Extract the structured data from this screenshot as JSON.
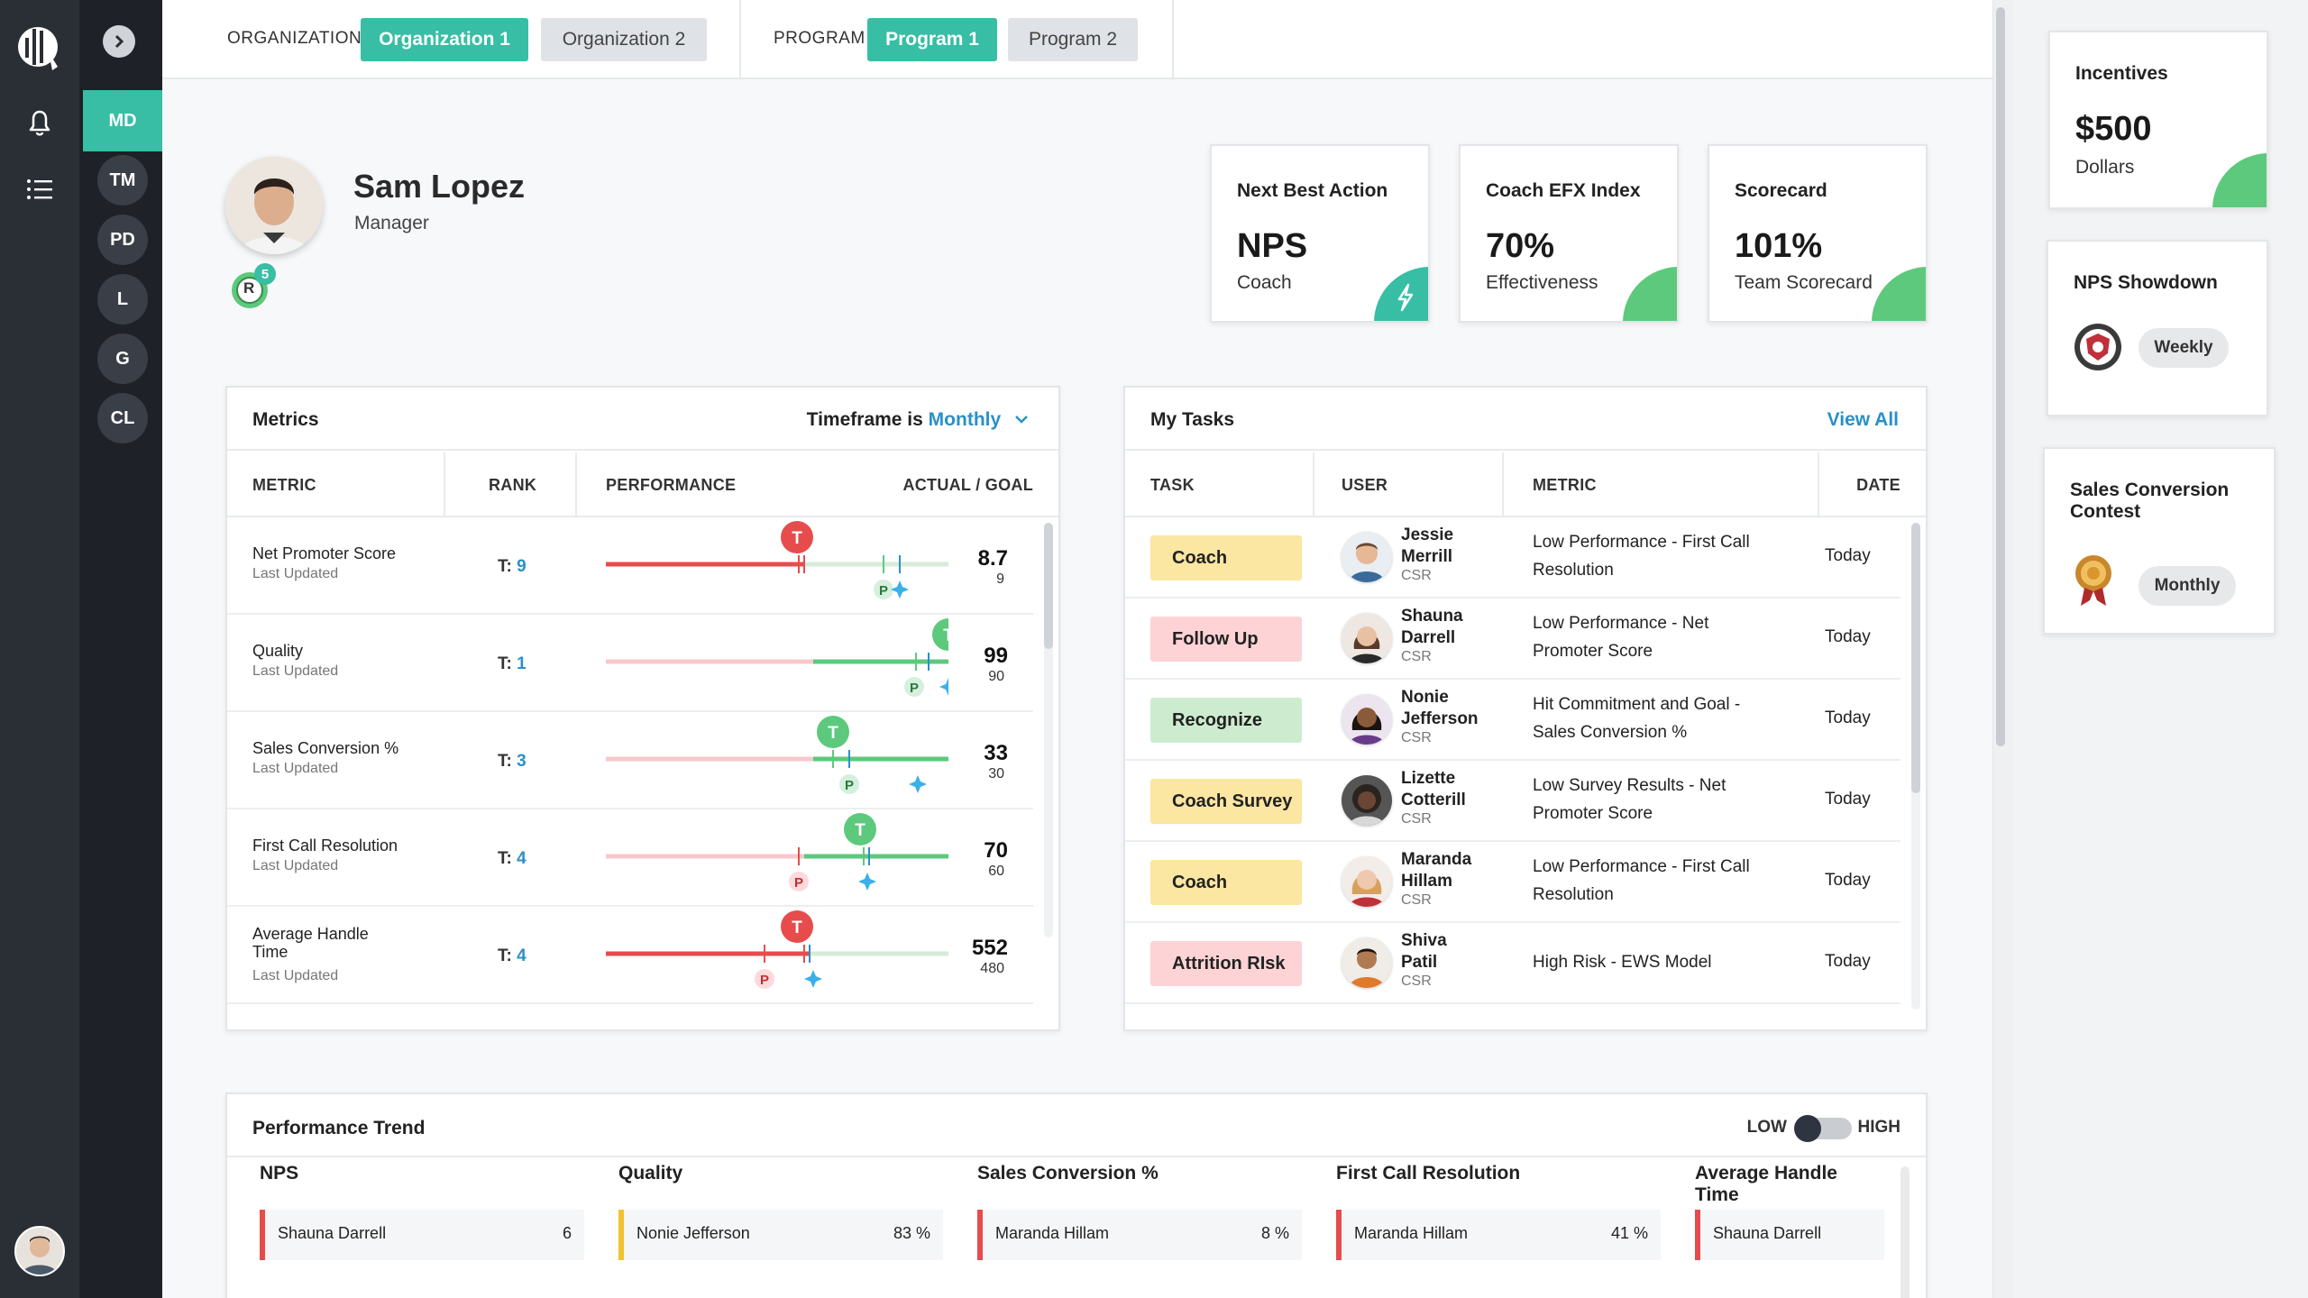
{
  "nav": {
    "teams": [
      "MD",
      "TM",
      "PD",
      "L",
      "G",
      "CL"
    ],
    "active_team": "MD"
  },
  "topbar": {
    "org_label": "ORGANIZATION",
    "orgs": [
      "Organization 1",
      "Organization 2"
    ],
    "program_label": "PROGRAM",
    "programs": [
      "Program 1",
      "Program 2"
    ]
  },
  "profile": {
    "name": "Sam Lopez",
    "role": "Manager",
    "badge_letter": "R",
    "badge_count": "5"
  },
  "summary_cards": [
    {
      "title": "Next Best Action",
      "value": "NPS",
      "sub": "Coach"
    },
    {
      "title": "Coach EFX Index",
      "value": "70%",
      "sub": "Effectiveness"
    },
    {
      "title": "Scorecard",
      "value": "101%",
      "sub": "Team Scorecard"
    }
  ],
  "metrics": {
    "title": "Metrics",
    "timeframe_prefix": "Timeframe is",
    "timeframe": "Monthly",
    "columns": {
      "metric": "METRIC",
      "rank": "RANK",
      "performance": "PERFORMANCE",
      "actual_goal": "ACTUAL / GOAL"
    },
    "rows": [
      {
        "name": "Net Promoter Score",
        "updated": "Last Updated",
        "rank_prefix": "T:",
        "rank": "9",
        "actual": "8.7",
        "goal": "9"
      },
      {
        "name": "Quality",
        "updated": "Last Updated",
        "rank_prefix": "T:",
        "rank": "1",
        "actual": "99",
        "goal": "90"
      },
      {
        "name": "Sales Conversion %",
        "updated": "Last Updated",
        "rank_prefix": "T:",
        "rank": "3",
        "actual": "33",
        "goal": "30"
      },
      {
        "name": "First Call Resolution",
        "updated": "Last Updated",
        "rank_prefix": "T:",
        "rank": "4",
        "actual": "70",
        "goal": "60"
      },
      {
        "name": "Average Handle Time",
        "updated": "Last Updated",
        "rank_prefix": "T:",
        "rank": "4",
        "actual": "552",
        "goal": "480"
      }
    ],
    "marker_labels": {
      "target": "T",
      "personal": "P"
    }
  },
  "tasks": {
    "title": "My Tasks",
    "view_all": "View All",
    "columns": {
      "task": "TASK",
      "user": "USER",
      "metric": "METRIC",
      "date": "DATE"
    },
    "rows": [
      {
        "task": "Coach",
        "first": "Jessie",
        "last": "Merrill",
        "role": "CSR",
        "metric": "Low Performance - First Call Resolution",
        "date": "Today"
      },
      {
        "task": "Follow Up",
        "first": "Shauna",
        "last": "Darrell",
        "role": "CSR",
        "metric": "Low Performance - Net Promoter Score",
        "date": "Today"
      },
      {
        "task": "Recognize",
        "first": "Nonie",
        "last": "Jefferson",
        "role": "CSR",
        "metric": "Hit Commitment and Goal - Sales Conversion %",
        "date": "Today"
      },
      {
        "task": "Coach Survey",
        "first": "Lizette",
        "last": "Cotterill",
        "role": "CSR",
        "metric": "Low Survey Results - Net Promoter Score",
        "date": "Today"
      },
      {
        "task": "Coach",
        "first": "Maranda",
        "last": "Hillam",
        "role": "CSR",
        "metric": "Low Performance - First Call Resolution",
        "date": "Today"
      },
      {
        "task": "Attrition RIsk",
        "first": "Shiva",
        "last": "Patil",
        "role": "CSR",
        "metric": "High Risk - EWS Model",
        "date": "Today"
      }
    ]
  },
  "trend": {
    "title": "Performance Trend",
    "low": "LOW",
    "high": "HIGH",
    "columns": [
      {
        "title": "NPS",
        "name": "Shauna Darrell",
        "value": "6"
      },
      {
        "title": "Quality",
        "name": "Nonie Jefferson",
        "value": "83 %"
      },
      {
        "title": "Sales Conversion %",
        "name": "Maranda Hillam",
        "value": "8 %"
      },
      {
        "title": "First Call Resolution",
        "name": "Maranda Hillam",
        "value": "41 %"
      },
      {
        "title": "Average Handle Time",
        "name": "Shauna Darrell",
        "value": ""
      }
    ]
  },
  "right": {
    "incentives": {
      "title": "Incentives",
      "value": "$500",
      "sub": "Dollars"
    },
    "nps_showdown": {
      "title": "NPS Showdown",
      "period": "Weekly"
    },
    "sales_contest": {
      "title_line1": "Sales Conversion",
      "title_line2": "Contest",
      "period": "Monthly"
    }
  },
  "colors": {
    "teal": "#37bea4",
    "red": "#e74c4c",
    "green": "#5cc97c",
    "blue": "#2a90c8",
    "tag_yellow": "#fbe6a2",
    "tag_pink": "#fdd3d6",
    "tag_green": "#cdeccf"
  }
}
